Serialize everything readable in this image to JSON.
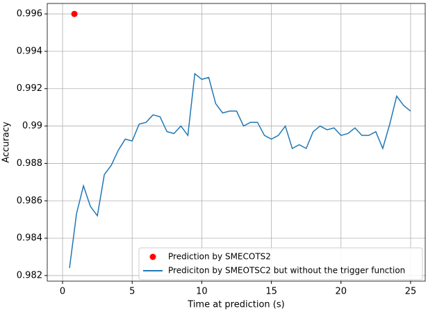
{
  "chart_data": {
    "type": "line",
    "xlabel": "Time at prediction (s)",
    "ylabel": "Accuracy",
    "xlim": [
      -1.1,
      26.05
    ],
    "ylim": [
      0.9817,
      0.99656
    ],
    "xticks": [
      0,
      5,
      10,
      15,
      20,
      25
    ],
    "yticks": [
      0.982,
      0.984,
      0.986,
      0.988,
      0.99,
      0.992,
      0.994,
      0.996
    ],
    "grid": true,
    "legend": "lower right",
    "series": [
      {
        "name": "Prediction by SMECOTS2",
        "type": "scatter",
        "color": "#ff0000",
        "x": [
          0.85
        ],
        "values": [
          0.996
        ]
      },
      {
        "name": "Prediciton by SMEOTSC2 but without the trigger function",
        "type": "line",
        "color": "#1f77b4",
        "x": [
          0.5,
          1,
          1.5,
          2,
          2.5,
          3,
          3.5,
          4,
          4.5,
          5,
          5.5,
          6,
          6.5,
          7,
          7.5,
          8,
          8.5,
          9,
          9.5,
          10,
          10.5,
          11,
          11.5,
          12,
          12.5,
          13,
          13.5,
          14,
          14.5,
          15,
          15.5,
          16,
          16.5,
          17,
          17.5,
          18,
          18.5,
          19,
          19.5,
          20,
          20.5,
          21,
          21.5,
          22,
          22.5,
          23,
          23.5,
          24,
          24.5,
          25
        ],
        "values": [
          0.9824,
          0.9853,
          0.9868,
          0.9857,
          0.9852,
          0.9874,
          0.9879,
          0.9887,
          0.9893,
          0.9892,
          0.9901,
          0.9902,
          0.9906,
          0.9905,
          0.9897,
          0.9896,
          0.99,
          0.9895,
          0.9928,
          0.9925,
          0.9926,
          0.9912,
          0.9907,
          0.9908,
          0.9908,
          0.99,
          0.9902,
          0.9902,
          0.9895,
          0.9893,
          0.9895,
          0.99,
          0.9888,
          0.989,
          0.9888,
          0.9897,
          0.99,
          0.9898,
          0.9899,
          0.9895,
          0.9896,
          0.9899,
          0.9895,
          0.9895,
          0.9897,
          0.9888,
          0.9901,
          0.9916,
          0.9911,
          0.9908
        ]
      }
    ]
  }
}
